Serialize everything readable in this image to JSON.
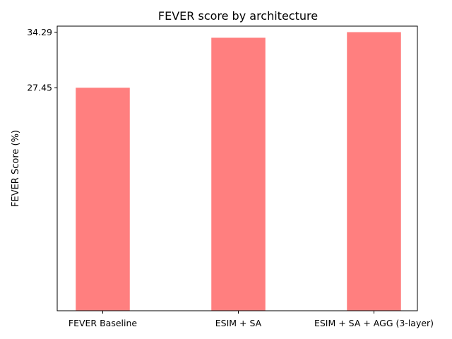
{
  "chart_data": {
    "type": "bar",
    "title": "FEVER score by architecture",
    "xlabel": "",
    "ylabel": "FEVER Score (%)",
    "categories": [
      "FEVER Baseline",
      "ESIM + SA",
      "ESIM + SA + AGG (3-layer)"
    ],
    "values": [
      27.45,
      33.6,
      34.29
    ],
    "yticks": [
      27.45,
      34.29
    ],
    "ytick_labels": [
      "27.45",
      "34.29"
    ],
    "ylim": [
      0,
      35.03
    ],
    "bar_color": "#ff7f7f",
    "grid": false,
    "legend": "none"
  }
}
